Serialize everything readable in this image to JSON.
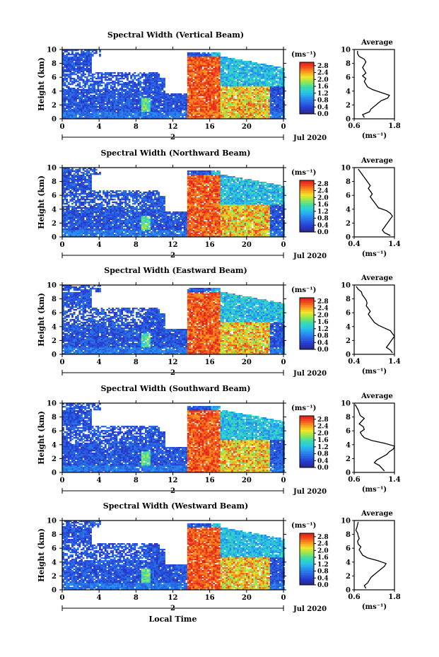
{
  "chart_data": [
    {
      "type": "heatmap",
      "title": "Spectral Width (Vertical Beam)",
      "xlabel": "",
      "ylabel": "Height (km)",
      "x_ticks": [
        "0",
        "4",
        "8",
        "12",
        "16",
        "20",
        "0"
      ],
      "y_ticks": [
        "0",
        "2",
        "4",
        "6",
        "8",
        "10"
      ],
      "xlim": [
        0,
        24
      ],
      "ylim": [
        0,
        10
      ],
      "date_label": "2",
      "month_label": "Jul 2020",
      "colorbar": {
        "unit": "(ms⁻¹)",
        "ticks": [
          "0.0",
          "0.4",
          "0.8",
          "1.2",
          "1.6",
          "2.0",
          "2.4",
          "2.8"
        ],
        "range": [
          0,
          3.0
        ]
      },
      "average": {
        "title": "Average",
        "xlabel": "(ms⁻¹)",
        "x_ticks": [
          "0.6",
          "1.8"
        ],
        "xlim": [
          0.6,
          1.8
        ],
        "y_ticks": [
          "0",
          "2",
          "4",
          "6",
          "8",
          "10"
        ],
        "height": [
          0.2,
          0.6,
          1.0,
          1.4,
          1.8,
          2.2,
          2.6,
          3.0,
          3.4,
          3.8,
          4.2,
          4.6,
          5.0,
          5.4,
          5.8,
          6.2,
          6.6,
          7.0,
          7.4,
          7.8,
          8.2,
          8.6,
          9.0,
          9.4,
          9.8
        ],
        "value": [
          0.9,
          0.85,
          1.05,
          1.1,
          1.2,
          1.3,
          1.4,
          1.6,
          1.65,
          1.4,
          1.15,
          1.0,
          0.95,
          0.9,
          0.95,
          0.85,
          0.95,
          0.9,
          0.85,
          0.9,
          0.95,
          0.9,
          0.75,
          0.7,
          0.7
        ]
      }
    },
    {
      "type": "heatmap",
      "title": "Spectral Width (Northward Beam)",
      "xlabel": "",
      "ylabel": "Height (km)",
      "x_ticks": [
        "0",
        "4",
        "8",
        "12",
        "16",
        "20",
        "0"
      ],
      "y_ticks": [
        "0",
        "2",
        "4",
        "6",
        "8",
        "10"
      ],
      "xlim": [
        0,
        24
      ],
      "ylim": [
        0,
        10
      ],
      "date_label": "2",
      "month_label": "Jul 2020",
      "colorbar": {
        "unit": "(ms⁻¹)",
        "ticks": [
          "0.0",
          "0.4",
          "0.8",
          "1.2",
          "1.6",
          "2.0",
          "2.4",
          "2.8"
        ],
        "range": [
          0,
          3.0
        ]
      },
      "average": {
        "title": "Average",
        "xlabel": "(ms⁻¹)",
        "x_ticks": [
          "0.4",
          "1.4"
        ],
        "xlim": [
          0.4,
          1.4
        ],
        "y_ticks": [
          "0",
          "2",
          "4",
          "6",
          "8",
          "10"
        ],
        "height": [
          0.2,
          0.6,
          1.0,
          1.4,
          1.8,
          2.2,
          2.6,
          3.0,
          3.4,
          3.8,
          4.2,
          4.6,
          5.0,
          5.4,
          5.8,
          6.2,
          6.6,
          7.0,
          7.4,
          7.8,
          8.2,
          8.6,
          9.0,
          9.4,
          9.8
        ],
        "value": [
          1.3,
          1.15,
          1.1,
          1.15,
          1.2,
          1.25,
          1.3,
          1.35,
          1.3,
          1.2,
          1.0,
          0.95,
          0.9,
          0.85,
          0.8,
          0.85,
          0.8,
          0.75,
          0.8,
          0.75,
          0.7,
          0.65,
          0.6,
          0.55,
          0.5
        ]
      }
    },
    {
      "type": "heatmap",
      "title": "Spectral Width (Eastward Beam)",
      "xlabel": "",
      "ylabel": "Height (km)",
      "x_ticks": [
        "0",
        "4",
        "8",
        "12",
        "16",
        "20",
        "0"
      ],
      "y_ticks": [
        "0",
        "2",
        "4",
        "6",
        "8",
        "10"
      ],
      "xlim": [
        0,
        24
      ],
      "ylim": [
        0,
        10
      ],
      "date_label": "2",
      "month_label": "Jul 2020",
      "colorbar": {
        "unit": "(ms⁻¹)",
        "ticks": [
          "0.0",
          "0.4",
          "0.8",
          "1.2",
          "1.6",
          "2.0",
          "2.4",
          "2.8"
        ],
        "range": [
          0,
          3.0
        ]
      },
      "average": {
        "title": "Average",
        "xlabel": "(ms⁻¹)",
        "x_ticks": [
          "0.4",
          "1.4"
        ],
        "xlim": [
          0.4,
          1.4
        ],
        "y_ticks": [
          "0",
          "2",
          "4",
          "6",
          "8",
          "10"
        ],
        "height": [
          0.2,
          0.6,
          1.0,
          1.4,
          1.8,
          2.2,
          2.6,
          3.0,
          3.4,
          3.8,
          4.2,
          4.6,
          5.0,
          5.4,
          5.8,
          6.2,
          6.6,
          7.0,
          7.4,
          7.8,
          8.2,
          8.6,
          9.0,
          9.4,
          9.8
        ],
        "value": [
          1.35,
          1.3,
          1.2,
          1.25,
          1.3,
          1.35,
          1.4,
          1.35,
          1.3,
          1.15,
          1.0,
          0.9,
          0.85,
          0.8,
          0.75,
          0.8,
          0.75,
          0.7,
          0.72,
          0.7,
          0.65,
          0.6,
          0.58,
          0.5,
          0.45
        ]
      }
    },
    {
      "type": "heatmap",
      "title": "Spectral Width (Southward Beam)",
      "xlabel": "",
      "ylabel": "Height (km)",
      "x_ticks": [
        "0",
        "4",
        "8",
        "12",
        "16",
        "20",
        "0"
      ],
      "y_ticks": [
        "0",
        "2",
        "4",
        "6",
        "8",
        "10"
      ],
      "xlim": [
        0,
        24
      ],
      "ylim": [
        0,
        10
      ],
      "date_label": "2",
      "month_label": "Jul 2020",
      "colorbar": {
        "unit": "(ms⁻¹)",
        "ticks": [
          "0.0",
          "0.4",
          "0.8",
          "1.2",
          "1.6",
          "2.0",
          "2.4",
          "2.8"
        ],
        "range": [
          0,
          3.0
        ]
      },
      "average": {
        "title": "Average",
        "xlabel": "(ms⁻¹)",
        "x_ticks": [
          "0.6",
          "1.4"
        ],
        "xlim": [
          0.6,
          1.4
        ],
        "y_ticks": [
          "0",
          "2",
          "4",
          "6",
          "8",
          "10"
        ],
        "height": [
          0.2,
          0.6,
          1.0,
          1.4,
          1.8,
          2.2,
          2.6,
          3.0,
          3.4,
          3.8,
          4.2,
          4.6,
          5.0,
          5.4,
          5.8,
          6.2,
          6.6,
          7.0,
          7.4,
          7.8,
          8.2,
          8.6,
          9.0,
          9.4,
          9.8
        ],
        "value": [
          1.2,
          1.15,
          1.1,
          1.0,
          1.05,
          1.15,
          1.25,
          1.3,
          1.38,
          1.4,
          1.2,
          0.95,
          0.8,
          0.75,
          0.72,
          0.8,
          0.78,
          0.7,
          0.75,
          0.8,
          0.72,
          0.7,
          0.68,
          0.65,
          0.62
        ]
      }
    },
    {
      "type": "heatmap",
      "title": "Spectral Width (Westward Beam)",
      "xlabel": "Local Time",
      "ylabel": "Height (km)",
      "x_ticks": [
        "0",
        "4",
        "8",
        "12",
        "16",
        "20",
        "0"
      ],
      "y_ticks": [
        "0",
        "2",
        "4",
        "6",
        "8",
        "10"
      ],
      "xlim": [
        0,
        24
      ],
      "ylim": [
        0,
        10
      ],
      "date_label": "2",
      "month_label": "Jul 2020",
      "colorbar": {
        "unit": "(ms⁻¹)",
        "ticks": [
          "0.0",
          "0.4",
          "0.8",
          "1.2",
          "1.6",
          "2.0",
          "2.4",
          "2.8"
        ],
        "range": [
          0,
          3.0
        ]
      },
      "average": {
        "title": "Average",
        "xlabel": "(ms⁻¹)",
        "x_ticks": [
          "0.6",
          "1.8"
        ],
        "xlim": [
          0.6,
          1.8
        ],
        "y_ticks": [
          "0",
          "2",
          "4",
          "6",
          "8",
          "10"
        ],
        "height": [
          0.2,
          0.6,
          1.0,
          1.4,
          1.8,
          2.2,
          2.6,
          3.0,
          3.4,
          3.8,
          4.2,
          4.6,
          5.0,
          5.4,
          5.8,
          6.2,
          6.6,
          7.0,
          7.4,
          7.8,
          8.2,
          8.6,
          9.0,
          9.4,
          9.8
        ],
        "value": [
          0.95,
          0.9,
          1.0,
          1.05,
          1.1,
          1.2,
          1.3,
          1.4,
          1.5,
          1.55,
          1.3,
          1.0,
          0.85,
          0.8,
          0.75,
          0.8,
          0.72,
          0.7,
          0.75,
          0.72,
          0.7,
          0.65,
          0.68,
          0.7,
          0.72
        ]
      }
    }
  ]
}
